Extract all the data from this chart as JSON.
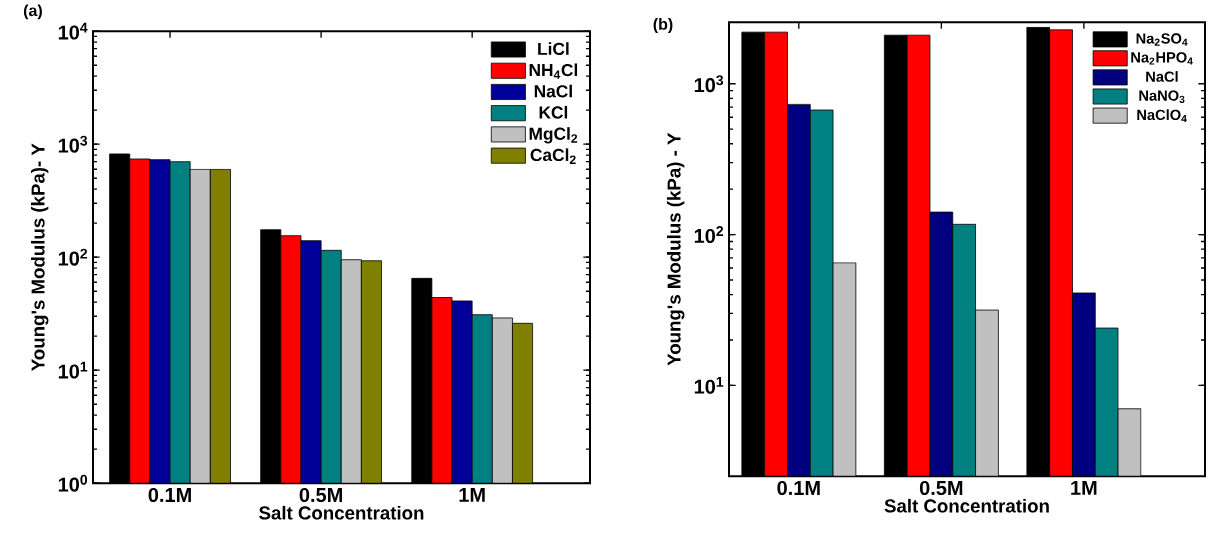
{
  "chart_data": [
    {
      "type": "bar",
      "title": "(a)",
      "xlabel": "Salt Concentration",
      "ylabel": "Young's Modulus (kPa)- Y",
      "categories": [
        "0.1M",
        "0.5M",
        "1M"
      ],
      "log": true,
      "legend": "top right",
      "ylim": [
        1,
        10000
      ],
      "yticks": [
        {
          "value": 1,
          "label": "10$^{0}$"
        },
        {
          "value": 10,
          "label": "10$^{1}$"
        },
        {
          "value": 100,
          "label": "10$^{2}$"
        },
        {
          "value": 1000,
          "label": "10$^{3}$"
        },
        {
          "value": 10000,
          "label": "10$^{4}$"
        }
      ],
      "series": [
        {
          "name": "LiCl",
          "color": "#000000",
          "values": [
            820,
            175,
            65
          ]
        },
        {
          "name": "NH$_{4}$Cl",
          "color": "#ff0000",
          "values": [
            740,
            155,
            44
          ]
        },
        {
          "name": "NaCl",
          "color": "#000099",
          "values": [
            730,
            140,
            41
          ]
        },
        {
          "name": "KCl",
          "color": "#008080",
          "values": [
            700,
            115,
            31
          ]
        },
        {
          "name": "MgCl$_{2}$",
          "color": "#c0c0c0",
          "values": [
            600,
            95,
            29
          ]
        },
        {
          "name": "CaCl$_{2}$",
          "color": "#808000",
          "values": [
            600,
            93,
            26
          ]
        }
      ]
    },
    {
      "type": "bar",
      "title": "(b)",
      "xlabel": "Salt Concentration",
      "ylabel": "Young's Modulus (kPa) - Y",
      "categories": [
        "0.1M",
        "0.5M",
        "1M"
      ],
      "log": true,
      "legend": "top right",
      "ylim": [
        2.5,
        2560
      ],
      "yticks": [
        {
          "value": 10,
          "label": "10$^{1}$"
        },
        {
          "value": 100,
          "label": "10$^{2}$"
        },
        {
          "value": 1000,
          "label": "10$^{3}$"
        }
      ],
      "series": [
        {
          "name": "Na$_{2}$SO$_{4}$",
          "color": "#000000",
          "values": [
            2200,
            2100,
            2370
          ]
        },
        {
          "name": "Na$_{2}$HPO$_{4}$",
          "color": "#ff0000",
          "values": [
            2200,
            2100,
            2280
          ]
        },
        {
          "name": "NaCl",
          "color": "#000080",
          "values": [
            730,
            141,
            41
          ]
        },
        {
          "name": "NaNO$_{3}$",
          "color": "#008080",
          "values": [
            670,
            117,
            24
          ]
        },
        {
          "name": "NaClO$_{4}$",
          "color": "#c0c0c0",
          "values": [
            65,
            31.6,
            7
          ]
        }
      ]
    }
  ]
}
